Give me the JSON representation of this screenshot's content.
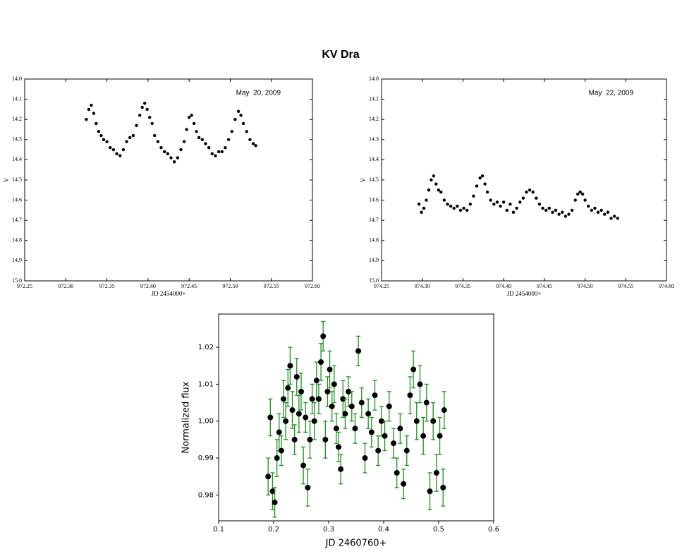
{
  "title": "KV Dra",
  "chart_data": [
    {
      "type": "scatter",
      "annotation": "May  20, 2009",
      "xlabel": "JD 2454000+",
      "ylabel": "V",
      "color": "#000000",
      "yinvert": true,
      "xlim": [
        972.25,
        972.6
      ],
      "xticks": [
        972.25,
        {
          "value": 972.3,
          "label": "972.30"
        },
        972.35,
        {
          "value": 972.4,
          "label": "972.40"
        },
        972.45,
        {
          "value": 972.5,
          "label": "972.50"
        },
        972.55,
        {
          "value": 972.6,
          "label": "972.60"
        }
      ],
      "ylim": [
        14,
        15
      ],
      "yticks": [
        {
          "value": 14,
          "label": "14.0"
        },
        14.1,
        14.2,
        14.3,
        14.4,
        14.5,
        14.6,
        14.7,
        14.8,
        14.9,
        {
          "value": 15,
          "label": "15.0"
        }
      ],
      "x": [
        972.325,
        972.328,
        972.331,
        972.334,
        972.337,
        972.34,
        972.343,
        972.346,
        972.35,
        972.354,
        972.358,
        972.362,
        972.366,
        972.37,
        972.374,
        972.378,
        972.382,
        972.386,
        972.39,
        972.393,
        972.396,
        972.399,
        972.402,
        972.405,
        972.408,
        972.412,
        972.416,
        972.42,
        972.424,
        972.428,
        972.432,
        972.436,
        972.44,
        972.444,
        972.447,
        972.45,
        972.453,
        972.456,
        972.459,
        972.462,
        972.466,
        972.47,
        972.474,
        972.478,
        972.482,
        972.486,
        972.49,
        972.494,
        972.498,
        972.502,
        972.506,
        972.51,
        972.513,
        972.516,
        972.52,
        972.524,
        972.528,
        972.531
      ],
      "values": [
        14.2,
        14.15,
        14.13,
        14.17,
        14.22,
        14.26,
        14.28,
        14.3,
        14.31,
        14.34,
        14.35,
        14.37,
        14.38,
        14.35,
        14.31,
        14.29,
        14.28,
        14.23,
        14.18,
        14.14,
        14.12,
        14.15,
        14.19,
        14.22,
        14.28,
        14.31,
        14.34,
        14.36,
        14.37,
        14.39,
        14.41,
        14.39,
        14.35,
        14.31,
        14.25,
        14.19,
        14.18,
        14.22,
        14.26,
        14.29,
        14.3,
        14.32,
        14.34,
        14.37,
        14.38,
        14.36,
        14.36,
        14.34,
        14.3,
        14.26,
        14.2,
        14.16,
        14.18,
        14.22,
        14.26,
        14.3,
        14.32,
        14.33
      ]
    },
    {
      "type": "scatter",
      "annotation": "May  22, 2009",
      "xlabel": "JD 2454000+",
      "ylabel": "V",
      "color": "#000000",
      "yinvert": true,
      "xlim": [
        974.25,
        974.6
      ],
      "xticks": [
        974.25,
        {
          "value": 974.3,
          "label": "974.30"
        },
        974.35,
        {
          "value": 974.4,
          "label": "974.40"
        },
        974.45,
        {
          "value": 974.5,
          "label": "974.50"
        },
        974.55,
        {
          "value": 974.6,
          "label": "974.60"
        }
      ],
      "ylim": [
        14,
        15
      ],
      "yticks": [
        {
          "value": 14,
          "label": "14.0"
        },
        14.1,
        14.2,
        14.3,
        14.4,
        14.5,
        14.6,
        14.7,
        14.8,
        14.9,
        {
          "value": 15,
          "label": "15.0"
        }
      ],
      "x": [
        974.296,
        974.299,
        974.302,
        974.305,
        974.308,
        974.311,
        974.314,
        974.317,
        974.32,
        974.323,
        974.327,
        974.331,
        974.335,
        974.339,
        974.343,
        974.347,
        974.351,
        974.355,
        974.359,
        974.363,
        974.367,
        974.371,
        974.374,
        974.377,
        974.38,
        974.384,
        974.388,
        974.392,
        974.396,
        974.4,
        974.404,
        974.408,
        974.412,
        974.416,
        974.42,
        974.424,
        974.428,
        974.432,
        974.436,
        974.44,
        974.444,
        974.448,
        974.452,
        974.456,
        974.46,
        974.464,
        974.468,
        974.472,
        974.476,
        974.48,
        974.484,
        974.488,
        974.491,
        974.494,
        974.497,
        974.5,
        974.504,
        974.508,
        974.512,
        974.516,
        974.52,
        974.524,
        974.528,
        974.532,
        974.536,
        974.54
      ],
      "values": [
        14.62,
        14.66,
        14.64,
        14.6,
        14.55,
        14.5,
        14.48,
        14.52,
        14.55,
        14.56,
        14.6,
        14.62,
        14.63,
        14.64,
        14.63,
        14.65,
        14.64,
        14.65,
        14.62,
        14.58,
        14.53,
        14.49,
        14.48,
        14.52,
        14.56,
        14.6,
        14.62,
        14.61,
        14.63,
        14.61,
        14.65,
        14.62,
        14.66,
        14.64,
        14.61,
        14.59,
        14.56,
        14.55,
        14.56,
        14.59,
        14.62,
        14.64,
        14.65,
        14.64,
        14.66,
        14.65,
        14.67,
        14.66,
        14.68,
        14.67,
        14.65,
        14.6,
        14.57,
        14.56,
        14.57,
        14.6,
        14.63,
        14.65,
        14.64,
        14.66,
        14.65,
        14.67,
        14.66,
        14.69,
        14.68,
        14.69
      ]
    },
    {
      "type": "errorbar",
      "xlabel": "JD 2460760+",
      "ylabel": "Normalized flux",
      "color": "#000000",
      "error_color": "#228b22",
      "xlim": [
        0.1,
        0.6
      ],
      "xticks": [
        0.1,
        0.2,
        0.3,
        0.4,
        0.5,
        0.6
      ],
      "ylim": [
        0.973,
        1.029
      ],
      "yticks": [
        0.98,
        0.99,
        {
          "value": 1,
          "label": "1.00"
        },
        1.01,
        1.02
      ],
      "x": [
        0.19,
        0.194,
        0.198,
        0.202,
        0.206,
        0.21,
        0.214,
        0.218,
        0.222,
        0.226,
        0.23,
        0.234,
        0.238,
        0.242,
        0.246,
        0.25,
        0.254,
        0.258,
        0.262,
        0.266,
        0.27,
        0.274,
        0.278,
        0.282,
        0.286,
        0.29,
        0.294,
        0.298,
        0.302,
        0.306,
        0.31,
        0.314,
        0.318,
        0.322,
        0.326,
        0.33,
        0.336,
        0.342,
        0.348,
        0.354,
        0.36,
        0.366,
        0.372,
        0.378,
        0.384,
        0.39,
        0.396,
        0.402,
        0.41,
        0.418,
        0.424,
        0.43,
        0.436,
        0.442,
        0.448,
        0.454,
        0.46,
        0.466,
        0.472,
        0.478,
        0.484,
        0.49,
        0.496,
        0.502,
        0.508,
        0.51
      ],
      "values": [
        0.985,
        1.001,
        0.981,
        0.978,
        0.99,
        0.997,
        0.992,
        1.006,
        1.0,
        1.009,
        1.015,
        1.003,
        0.995,
        1.012,
        1.002,
        1.008,
        0.988,
        1.001,
        0.982,
        0.995,
        1.006,
        1.0,
        1.011,
        1.006,
        1.016,
        1.023,
        0.995,
        1.008,
        1.014,
        1.004,
        1.01,
        0.998,
        0.993,
        0.987,
        1.006,
        1.002,
        1.008,
        1.004,
        0.998,
        1.019,
        1.005,
        0.99,
        1.002,
        0.997,
        1.007,
        0.992,
        1.0,
        0.996,
        1.004,
        0.994,
        0.986,
        0.998,
        0.983,
        0.992,
        1.007,
        1.014,
        1.0,
        1.01,
        0.996,
        1.005,
        0.981,
        1.0,
        0.986,
        0.996,
        0.982,
        1.003
      ],
      "errors": [
        0.005,
        0.005,
        0.005,
        0.004,
        0.005,
        0.005,
        0.004,
        0.005,
        0.005,
        0.005,
        0.005,
        0.005,
        0.004,
        0.005,
        0.005,
        0.005,
        0.005,
        0.004,
        0.005,
        0.005,
        0.004,
        0.005,
        0.005,
        0.004,
        0.005,
        0.004,
        0.005,
        0.004,
        0.005,
        0.004,
        0.005,
        0.004,
        0.004,
        0.004,
        0.005,
        0.004,
        0.004,
        0.004,
        0.004,
        0.004,
        0.004,
        0.004,
        0.004,
        0.004,
        0.004,
        0.004,
        0.004,
        0.004,
        0.004,
        0.004,
        0.004,
        0.004,
        0.004,
        0.004,
        0.005,
        0.005,
        0.005,
        0.005,
        0.005,
        0.005,
        0.005,
        0.005,
        0.005,
        0.005,
        0.005,
        0.005
      ]
    }
  ]
}
